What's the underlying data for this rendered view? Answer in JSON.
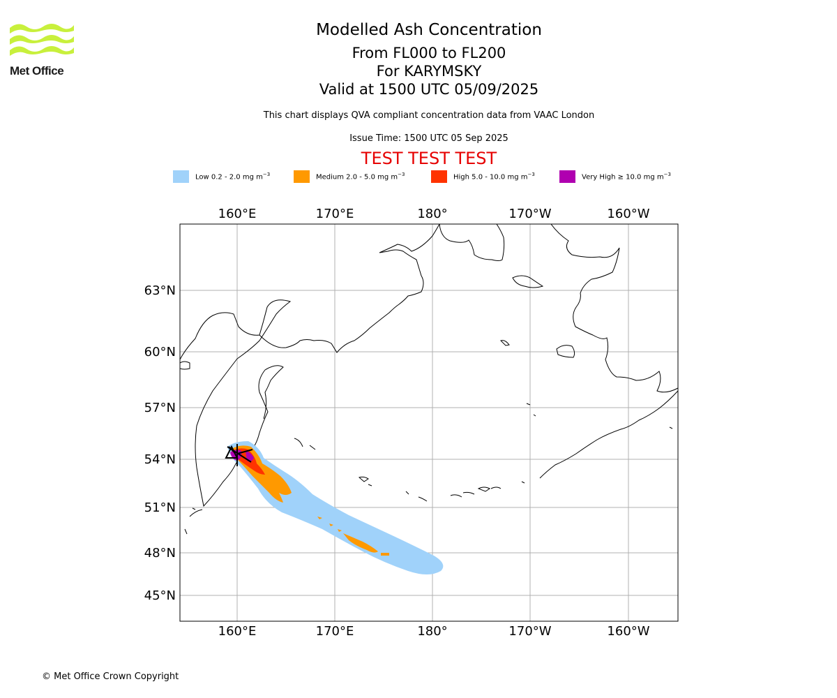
{
  "logo": {
    "text": "Met Office",
    "wave_color": "#c8f03c"
  },
  "header": {
    "title": "Modelled Ash Concentration",
    "levels": "From FL000 to FL200",
    "volcano": "For KARYMSKY",
    "valid": "Valid at 1500 UTC 05/09/2025",
    "subtitle": "This chart displays QVA compliant concentration data from VAAC London",
    "issue_time": "Issue Time: 1500 UTC 05 Sep 2025",
    "test_banner": "TEST TEST TEST"
  },
  "legend": [
    {
      "label": "Low 0.2 - 2.0 mg m",
      "unit_exp": "−3",
      "color": "#a0d2fa"
    },
    {
      "label": "Medium 2.0 - 5.0 mg m",
      "unit_exp": "−3",
      "color": "#ff9900"
    },
    {
      "label": "High 5.0 - 10.0 mg m",
      "unit_exp": "−3",
      "color": "#ff3300"
    },
    {
      "label": "Very High ≥ 10.0 mg m",
      "unit_exp": "−3",
      "color": "#b000b0"
    }
  ],
  "axes": {
    "lon_ticks": [
      "160°E",
      "170°E",
      "180°",
      "170°W",
      "160°W"
    ],
    "lat_ticks": [
      "63°N",
      "60°N",
      "57°N",
      "54°N",
      "51°N",
      "48°N",
      "45°N"
    ],
    "grid": true
  },
  "volcano_marker": {
    "name": "KARYMSKY",
    "lat": 54.05,
    "lon": 159.44
  },
  "footer": {
    "copyright": "© Met Office Crown Copyright"
  }
}
